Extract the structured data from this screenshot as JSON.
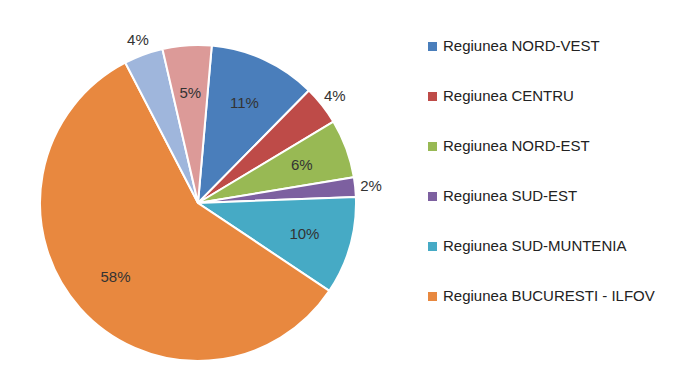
{
  "chart_data": {
    "type": "pie",
    "categories": [
      "Regiunea NORD-VEST",
      "Regiunea CENTRU",
      "Regiunea NORD-EST",
      "Regiunea SUD-EST",
      "Regiunea SUD-MUNTENIA",
      "Regiunea BUCURESTI - ILFOV",
      null,
      null
    ],
    "values": [
      11,
      4,
      6,
      2,
      10,
      58,
      4,
      5
    ],
    "value_labels": [
      "11%",
      "4%",
      "6%",
      "2%",
      "10%",
      "58%",
      "4%",
      "5%"
    ],
    "colors": [
      "#4a7ebb",
      "#be4b48",
      "#98b954",
      "#7d60a0",
      "#46aac5",
      "#e8883f",
      "#9fb6dc",
      "#dc9a98"
    ],
    "data_labels": true
  }
}
